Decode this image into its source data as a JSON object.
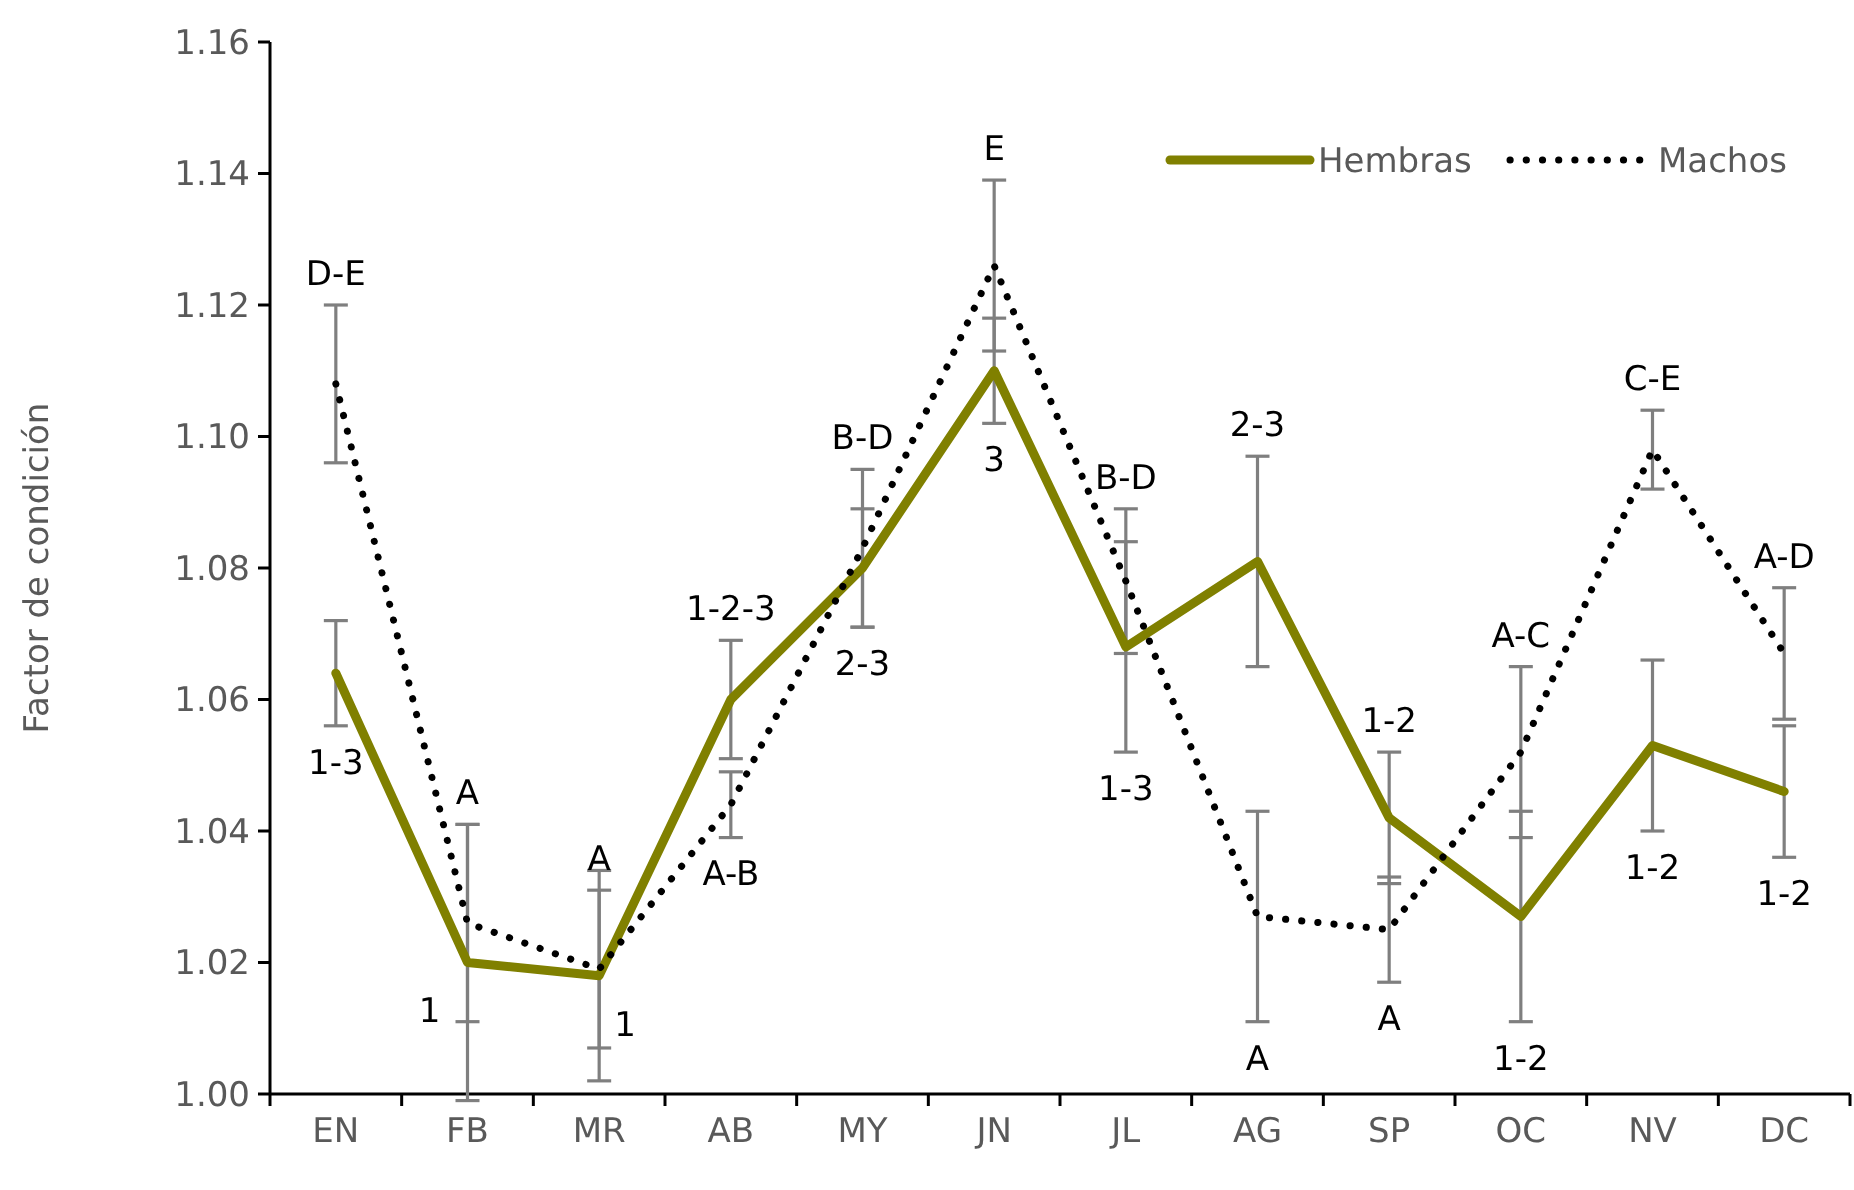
{
  "chart_data": {
    "type": "line",
    "ylabel": "Factor de condición",
    "categories": [
      "EN",
      "FB",
      "MR",
      "AB",
      "MY",
      "JN",
      "JL",
      "AG",
      "SP",
      "OC",
      "NV",
      "DC"
    ],
    "series": [
      {
        "name": "Hembras",
        "color": "#808000",
        "line_style": "solid",
        "values": [
          1.064,
          1.02,
          1.018,
          1.06,
          1.08,
          1.11,
          1.068,
          1.081,
          1.042,
          1.027,
          1.053,
          1.046
        ],
        "errors": [
          0.008,
          0.021,
          0.016,
          0.009,
          0.009,
          0.008,
          0.016,
          0.016,
          0.01,
          0.016,
          0.013,
          0.01
        ]
      },
      {
        "name": "Machos",
        "color": "#000000",
        "line_style": "dotted",
        "values": [
          1.108,
          1.026,
          1.019,
          1.044,
          1.083,
          1.126,
          1.078,
          1.027,
          1.025,
          1.052,
          1.098,
          1.067
        ],
        "errors": [
          0.012,
          0.015,
          0.012,
          0.005,
          0.012,
          0.013,
          0.011,
          0.016,
          0.008,
          0.013,
          0.006,
          0.01
        ]
      }
    ],
    "ylim": [
      1.0,
      1.16
    ],
    "yticks": [
      {
        "value": 1.0,
        "label": "1.00"
      },
      {
        "value": 1.02,
        "label": "1.02"
      },
      {
        "value": 1.04,
        "label": "1.04"
      },
      {
        "value": 1.06,
        "label": "1.06"
      },
      {
        "value": 1.08,
        "label": "1.08"
      },
      {
        "value": 1.1,
        "label": "1.10"
      },
      {
        "value": 1.12,
        "label": "1.12"
      },
      {
        "value": 1.14,
        "label": "1.14"
      },
      {
        "value": 1.16,
        "label": "1.16"
      }
    ],
    "grid": false,
    "legend": "top right",
    "marker": "none",
    "annotations": [
      "D-E",
      "1-3",
      "A",
      "1",
      "A",
      "1",
      "1-2-3",
      "A-B",
      "B-D",
      "2-3",
      "E",
      "3",
      "B-D",
      "1-3",
      "2-3",
      "A",
      "1-2",
      "A",
      "A-C",
      "1-2",
      "C-E",
      "1-2",
      "A-D",
      "1-2"
    ]
  }
}
